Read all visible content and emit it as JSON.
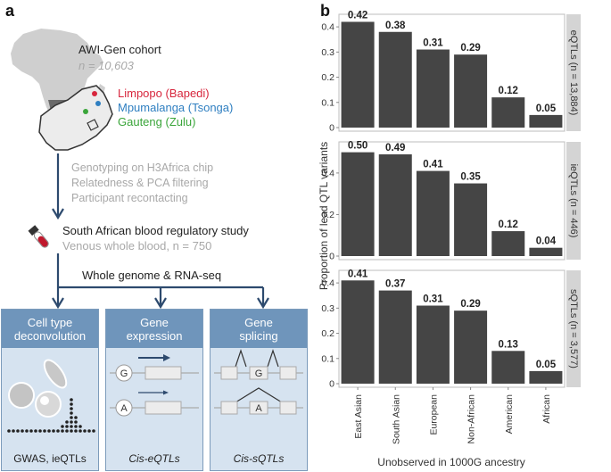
{
  "panel_a": {
    "letter": "a",
    "cohort_name": "AWI-Gen cohort",
    "cohort_n": "n = 10,603",
    "regions": [
      {
        "label": "Limpopo (Bapedi)",
        "color": "#d7263d"
      },
      {
        "label": "Mpumalanga (Tsonga)",
        "color": "#2f7fc1"
      },
      {
        "label": "Gauteng (Zulu)",
        "color": "#3aa53a"
      }
    ],
    "steps": [
      "Genotyping on H3Africa chip",
      "Relatedness & PCA filtering",
      "Participant recontacting"
    ],
    "study_title": "South African blood regulatory study",
    "study_sub": "Venous whole blood, n = 750",
    "sequencing": "Whole genome & RNA-seq",
    "boxes": [
      {
        "title_line1": "Cell type",
        "title_line2": "deconvolution",
        "footer": "GWAS, ieQTLs"
      },
      {
        "title_line1": "Gene",
        "title_line2": "expression",
        "footer": "Cis-eQTLs",
        "allele_1": "G",
        "allele_2": "A"
      },
      {
        "title_line1": "Gene",
        "title_line2": "splicing",
        "footer": "Cis-sQTLs",
        "allele_1": "G",
        "allele_2": "A"
      }
    ]
  },
  "chart_data": {
    "letter": "b",
    "type": "bar",
    "ylabel": "Proportion of lead QTL variants",
    "xlabel": "Unobserved in 1000G ancestry",
    "categories": [
      "East Asian",
      "South Asian",
      "European",
      "Non-African",
      "American",
      "African"
    ],
    "panels": [
      {
        "name": "eQTLs (n = 13,884)",
        "values": [
          0.42,
          0.38,
          0.31,
          0.29,
          0.12,
          0.05
        ],
        "labels": [
          "0.42",
          "0.38",
          "0.31",
          "0.29",
          "0.12",
          "0.05"
        ],
        "yticks": [
          "0.4",
          "0.3",
          "0.2",
          "0.1",
          "0"
        ],
        "ylim": [
          0,
          0.45
        ]
      },
      {
        "name": "ieQTLs (n = 446)",
        "values": [
          0.5,
          0.49,
          0.41,
          0.35,
          0.12,
          0.04
        ],
        "labels": [
          "0.50",
          "0.49",
          "0.41",
          "0.35",
          "0.12",
          "0.04"
        ],
        "yticks": [
          "0.4",
          "0.2",
          "0"
        ],
        "ylim": [
          0,
          0.55
        ]
      },
      {
        "name": "sQTLs (n = 3,577)",
        "values": [
          0.41,
          0.37,
          0.31,
          0.29,
          0.13,
          0.05
        ],
        "labels": [
          "0.41",
          "0.37",
          "0.31",
          "0.29",
          "0.13",
          "0.05"
        ],
        "yticks": [
          "0.4",
          "0.3",
          "0.2",
          "0.1",
          "0"
        ],
        "ylim": [
          0,
          0.45
        ]
      }
    ],
    "bar_color": "#454545",
    "strip_color": "#d4d4d4"
  }
}
